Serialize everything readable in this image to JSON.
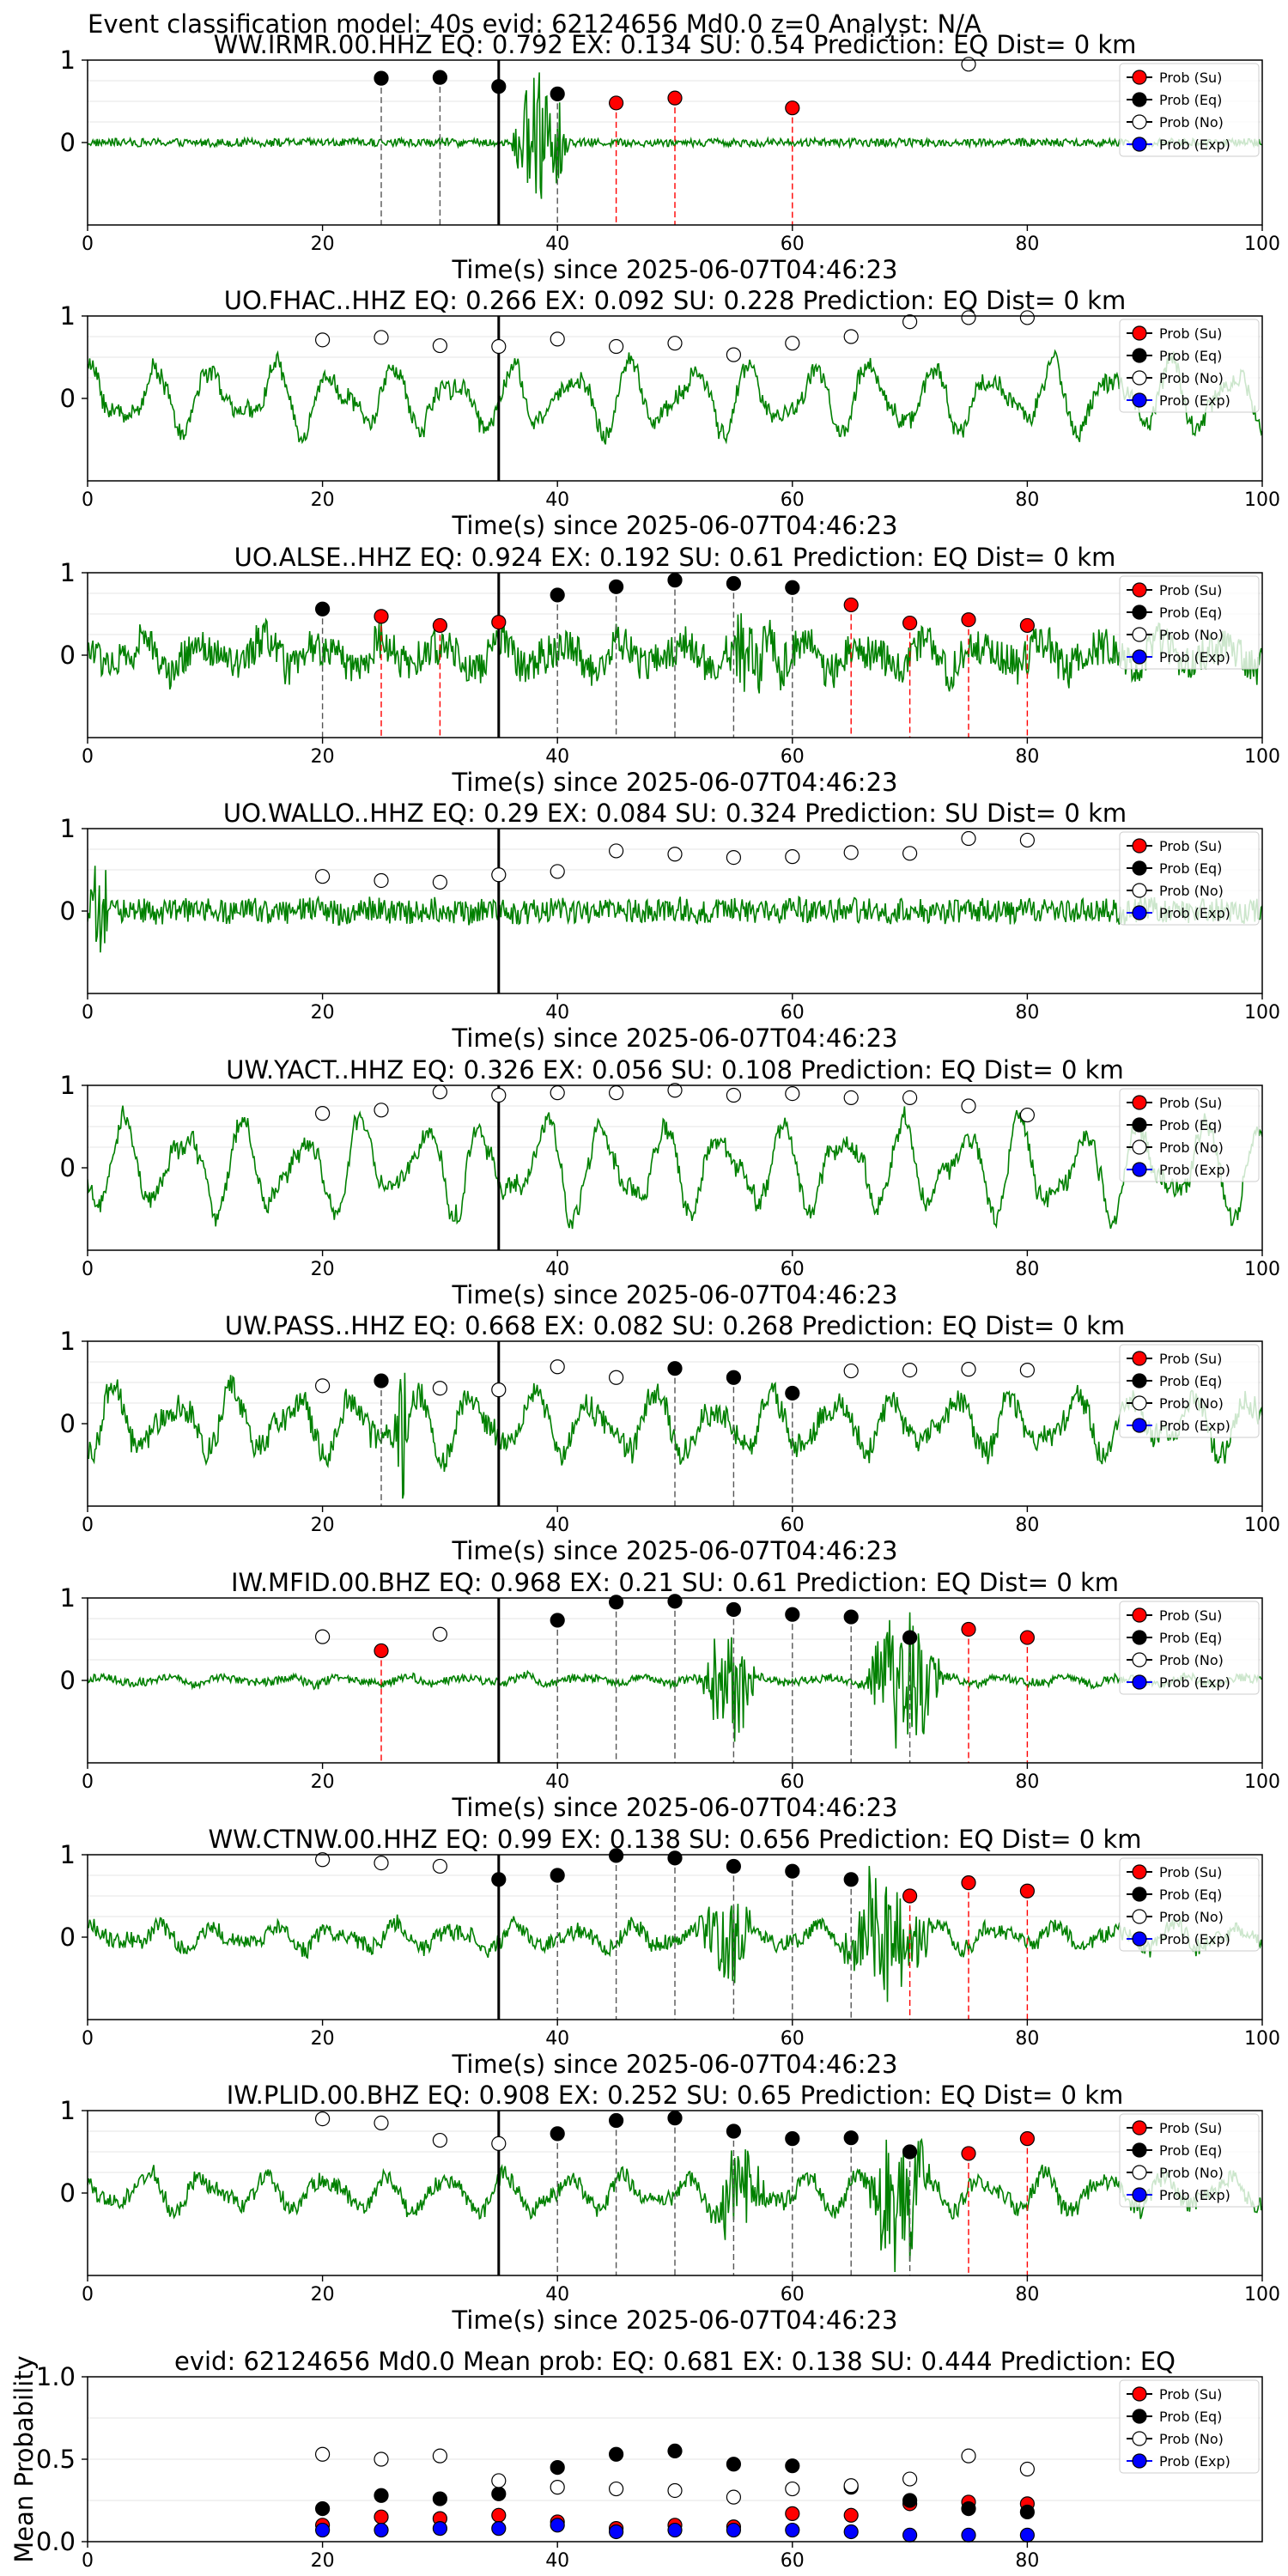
{
  "figure": {
    "title": "Event classification model: 40s evid: 62124656 Md0.0 z=0 Analyst: N/A",
    "xlabel": "Time(s) since 2025-06-07T04:46:23",
    "legend": [
      "Prob (Su)",
      "Prob (Eq)",
      "Prob (No)",
      "Prob (Exp)"
    ],
    "colors": {
      "waveform": "#008000",
      "su": "#ff0000",
      "eq": "#000000",
      "no": "#ffffff",
      "exp": "#0000ff",
      "marker_black": "#000000",
      "marker_red": "#ff0000"
    }
  },
  "chart_data": [
    {
      "type": "line",
      "title": "WW.IRMR.00.HHZ    EQ: 0.792  EX: 0.134  SU: 0.54   Prediction: EQ    Dist= 0 km",
      "xlim": [
        0,
        100
      ],
      "ylim": [
        -1,
        1
      ],
      "xticks": [
        0,
        20,
        40,
        60,
        80,
        100
      ],
      "yticks": [
        0,
        1
      ],
      "xlabel": "Time(s) since 2025-06-07T04:46:23",
      "legend_position": "top-right",
      "arrival_time": 35,
      "series": [
        {
          "name": "Prob (Su)",
          "x": [
            45,
            50,
            60
          ],
          "y": [
            0.48,
            0.54,
            0.42
          ]
        },
        {
          "name": "Prob (Eq)",
          "x": [
            25,
            30,
            35,
            40
          ],
          "y": [
            0.78,
            0.79,
            0.68,
            0.59
          ]
        },
        {
          "name": "Prob (No)",
          "x": [
            75
          ],
          "y": [
            0.95
          ]
        },
        {
          "name": "Prob (Exp)",
          "x": [],
          "y": []
        }
      ],
      "waveform": {
        "noise": 0.05,
        "osc": 0.0,
        "bursts": [
          {
            "s": 36,
            "e": 41,
            "a": 0.9
          }
        ]
      }
    },
    {
      "type": "line",
      "title": "UO.FHAC..HHZ   EQ: 0.266  EX: 0.092  SU: 0.228   Prediction: EQ    Dist= 0 km",
      "xlim": [
        0,
        100
      ],
      "ylim": [
        -1,
        1
      ],
      "xticks": [
        0,
        20,
        40,
        60,
        80,
        100
      ],
      "yticks": [
        0,
        1
      ],
      "xlabel": "Time(s) since 2025-06-07T04:46:23",
      "legend_position": "top-right",
      "arrival_time": 35,
      "series": [
        {
          "name": "Prob (Su)",
          "x": [],
          "y": []
        },
        {
          "name": "Prob (Eq)",
          "x": [],
          "y": []
        },
        {
          "name": "Prob (No)",
          "x": [
            20,
            25,
            30,
            35,
            40,
            45,
            50,
            55,
            60,
            65,
            70,
            75,
            80
          ],
          "y": [
            0.71,
            0.74,
            0.64,
            0.63,
            0.72,
            0.63,
            0.67,
            0.53,
            0.67,
            0.75,
            0.93,
            0.98,
            0.98
          ]
        },
        {
          "name": "Prob (Exp)",
          "x": [],
          "y": []
        }
      ],
      "waveform": {
        "noise": 0.1,
        "osc": 0.45,
        "bursts": []
      }
    },
    {
      "type": "line",
      "title": "UO.ALSE..HHZ   EQ: 0.924  EX: 0.192  SU: 0.61   Prediction: EQ    Dist= 0 km",
      "xlim": [
        0,
        100
      ],
      "ylim": [
        -1,
        1
      ],
      "xticks": [
        0,
        20,
        40,
        60,
        80,
        100
      ],
      "yticks": [
        0,
        1
      ],
      "xlabel": "Time(s) since 2025-06-07T04:46:23",
      "legend_position": "top-right",
      "arrival_time": 35,
      "series": [
        {
          "name": "Prob (Su)",
          "x": [
            25,
            30,
            35,
            65,
            70,
            75,
            80
          ],
          "y": [
            0.47,
            0.36,
            0.4,
            0.61,
            0.39,
            0.43,
            0.36
          ]
        },
        {
          "name": "Prob (Eq)",
          "x": [
            20,
            40,
            45,
            50,
            55,
            60
          ],
          "y": [
            0.56,
            0.73,
            0.83,
            0.91,
            0.87,
            0.82
          ]
        },
        {
          "name": "Prob (No)",
          "x": [],
          "y": []
        },
        {
          "name": "Prob (Exp)",
          "x": [],
          "y": []
        }
      ],
      "waveform": {
        "noise": 0.22,
        "osc": 0.2,
        "bursts": [
          {
            "s": 54,
            "e": 60,
            "a": 0.55
          }
        ]
      }
    },
    {
      "type": "line",
      "title": "UO.WALLO..HHZ   EQ: 0.29  EX: 0.084  SU: 0.324   Prediction: SU    Dist= 0 km",
      "xlim": [
        0,
        100
      ],
      "ylim": [
        -1,
        1
      ],
      "xticks": [
        0,
        20,
        40,
        60,
        80,
        100
      ],
      "yticks": [
        0,
        1
      ],
      "xlabel": "Time(s) since 2025-06-07T04:46:23",
      "legend_position": "top-right",
      "arrival_time": 35,
      "series": [
        {
          "name": "Prob (Su)",
          "x": [],
          "y": []
        },
        {
          "name": "Prob (Eq)",
          "x": [],
          "y": []
        },
        {
          "name": "Prob (No)",
          "x": [
            20,
            25,
            30,
            35,
            40,
            45,
            50,
            55,
            60,
            65,
            70,
            75,
            80
          ],
          "y": [
            0.42,
            0.37,
            0.35,
            0.44,
            0.48,
            0.73,
            0.69,
            0.65,
            0.66,
            0.71,
            0.7,
            0.88,
            0.86
          ]
        },
        {
          "name": "Prob (Exp)",
          "x": [],
          "y": []
        }
      ],
      "waveform": {
        "noise": 0.15,
        "osc": 0.03,
        "bursts": [
          {
            "s": 0,
            "e": 2,
            "a": 0.6
          }
        ]
      }
    },
    {
      "type": "line",
      "title": "UW.YACT..HHZ   EQ: 0.326  EX: 0.056  SU: 0.108   Prediction: EQ    Dist= 0 km",
      "xlim": [
        0,
        100
      ],
      "ylim": [
        -1,
        1
      ],
      "xticks": [
        0,
        20,
        40,
        60,
        80,
        100
      ],
      "yticks": [
        0,
        1
      ],
      "xlabel": "Time(s) since 2025-06-07T04:46:23",
      "legend_position": "top-right",
      "arrival_time": 35,
      "series": [
        {
          "name": "Prob (Su)",
          "x": [],
          "y": []
        },
        {
          "name": "Prob (Eq)",
          "x": [],
          "y": []
        },
        {
          "name": "Prob (No)",
          "x": [
            20,
            25,
            30,
            35,
            40,
            45,
            50,
            55,
            60,
            65,
            70,
            75,
            80
          ],
          "y": [
            0.66,
            0.7,
            0.92,
            0.88,
            0.91,
            0.91,
            0.94,
            0.88,
            0.9,
            0.85,
            0.85,
            0.75,
            0.64
          ]
        },
        {
          "name": "Prob (Exp)",
          "x": [],
          "y": []
        }
      ],
      "waveform": {
        "noise": 0.1,
        "osc": 0.6,
        "bursts": []
      }
    },
    {
      "type": "line",
      "title": "UW.PASS..HHZ   EQ: 0.668  EX: 0.082  SU: 0.268   Prediction: EQ    Dist= 0 km",
      "xlim": [
        0,
        100
      ],
      "ylim": [
        -1,
        1
      ],
      "xticks": [
        0,
        20,
        40,
        60,
        80,
        100
      ],
      "yticks": [
        0,
        1
      ],
      "xlabel": "Time(s) since 2025-06-07T04:46:23",
      "legend_position": "top-right",
      "arrival_time": 35,
      "series": [
        {
          "name": "Prob (Su)",
          "x": [],
          "y": []
        },
        {
          "name": "Prob (Eq)",
          "x": [
            25,
            50,
            55,
            60
          ],
          "y": [
            0.52,
            0.67,
            0.56,
            0.37
          ]
        },
        {
          "name": "Prob (No)",
          "x": [
            20,
            30,
            35,
            40,
            45,
            65,
            70,
            75,
            80
          ],
          "y": [
            0.46,
            0.43,
            0.41,
            0.69,
            0.56,
            0.64,
            0.65,
            0.66,
            0.65
          ]
        },
        {
          "name": "Prob (Exp)",
          "x": [],
          "y": []
        }
      ],
      "waveform": {
        "noise": 0.15,
        "osc": 0.4,
        "bursts": [
          {
            "s": 26,
            "e": 27.5,
            "a": 0.9
          }
        ]
      }
    },
    {
      "type": "line",
      "title": "IW.MFID.00.BHZ   EQ: 0.968  EX: 0.21  SU: 0.61   Prediction: EQ    Dist= 0 km",
      "xlim": [
        0,
        100
      ],
      "ylim": [
        -1,
        1
      ],
      "xticks": [
        0,
        20,
        40,
        60,
        80,
        100
      ],
      "yticks": [
        0,
        1
      ],
      "xlabel": "Time(s) since 2025-06-07T04:46:23",
      "legend_position": "top-right",
      "arrival_time": 35,
      "series": [
        {
          "name": "Prob (Su)",
          "x": [
            25,
            75,
            80
          ],
          "y": [
            0.36,
            0.62,
            0.52
          ]
        },
        {
          "name": "Prob (Eq)",
          "x": [
            40,
            45,
            50,
            55,
            60,
            65,
            70
          ],
          "y": [
            0.73,
            0.95,
            0.96,
            0.86,
            0.8,
            0.77,
            0.52
          ]
        },
        {
          "name": "Prob (No)",
          "x": [
            20,
            30
          ],
          "y": [
            0.53,
            0.56
          ]
        },
        {
          "name": "Prob (Exp)",
          "x": [],
          "y": []
        }
      ],
      "waveform": {
        "noise": 0.05,
        "osc": 0.05,
        "bursts": [
          {
            "s": 52,
            "e": 57,
            "a": 0.8
          },
          {
            "s": 66,
            "e": 73,
            "a": 0.9
          }
        ]
      }
    },
    {
      "type": "line",
      "title": "WW.CTNW.00.HHZ   EQ: 0.99  EX: 0.138  SU: 0.656   Prediction: EQ    Dist= 0 km",
      "xlim": [
        0,
        100
      ],
      "ylim": [
        -1,
        1
      ],
      "xticks": [
        0,
        20,
        40,
        60,
        80,
        100
      ],
      "yticks": [
        0,
        1
      ],
      "xlabel": "Time(s) since 2025-06-07T04:46:23",
      "legend_position": "top-right",
      "arrival_time": 35,
      "series": [
        {
          "name": "Prob (Su)",
          "x": [
            70,
            75,
            80
          ],
          "y": [
            0.5,
            0.66,
            0.56
          ]
        },
        {
          "name": "Prob (Eq)",
          "x": [
            35,
            40,
            45,
            50,
            55,
            60,
            65
          ],
          "y": [
            0.7,
            0.75,
            0.99,
            0.96,
            0.86,
            0.8,
            0.7
          ]
        },
        {
          "name": "Prob (No)",
          "x": [
            20,
            25,
            30
          ],
          "y": [
            0.94,
            0.9,
            0.86
          ]
        },
        {
          "name": "Prob (Exp)",
          "x": [],
          "y": []
        }
      ],
      "waveform": {
        "noise": 0.1,
        "osc": 0.15,
        "bursts": [
          {
            "s": 52,
            "e": 57,
            "a": 0.6
          },
          {
            "s": 64,
            "e": 72,
            "a": 0.8
          }
        ]
      }
    },
    {
      "type": "line",
      "title": "IW.PLID.00.BHZ   EQ: 0.908  EX: 0.252  SU: 0.65   Prediction: EQ    Dist= 0 km",
      "xlim": [
        0,
        100
      ],
      "ylim": [
        -1,
        1
      ],
      "xticks": [
        0,
        20,
        40,
        60,
        80,
        100
      ],
      "yticks": [
        0,
        1
      ],
      "xlabel": "Time(s) since 2025-06-07T04:46:23",
      "legend_position": "top-right",
      "arrival_time": 35,
      "series": [
        {
          "name": "Prob (Su)",
          "x": [
            75,
            80
          ],
          "y": [
            0.48,
            0.66
          ]
        },
        {
          "name": "Prob (Eq)",
          "x": [
            40,
            45,
            50,
            55,
            60,
            65,
            70
          ],
          "y": [
            0.72,
            0.88,
            0.91,
            0.75,
            0.66,
            0.67,
            0.5
          ]
        },
        {
          "name": "Prob (No)",
          "x": [
            20,
            25,
            30,
            35
          ],
          "y": [
            0.9,
            0.85,
            0.64,
            0.6
          ]
        },
        {
          "name": "Prob (Exp)",
          "x": [],
          "y": []
        }
      ],
      "waveform": {
        "noise": 0.1,
        "osc": 0.25,
        "bursts": [
          {
            "s": 53,
            "e": 58,
            "a": 0.5
          },
          {
            "s": 66,
            "e": 72,
            "a": 0.9
          }
        ]
      }
    },
    {
      "type": "scatter",
      "title": "evid: 62124656  Md0.0    Mean prob:    EQ: 0.681  EX: 0.138  SU: 0.444   Prediction: EQ",
      "ylabel": "Mean Probability",
      "xlim": [
        0,
        100
      ],
      "ylim": [
        0,
        1
      ],
      "xticks": [
        0,
        20,
        40,
        60,
        80
      ],
      "yticks": [
        0.0,
        0.5,
        1.0
      ],
      "ytick_labels": [
        "0.0",
        "0.5",
        "1.0"
      ],
      "legend_position": "top-right",
      "x": [
        20,
        25,
        30,
        35,
        40,
        45,
        50,
        55,
        60,
        65,
        70,
        75,
        80
      ],
      "series": [
        {
          "name": "Prob (Su)",
          "values": [
            0.1,
            0.15,
            0.14,
            0.16,
            0.12,
            0.08,
            0.1,
            0.09,
            0.17,
            0.16,
            0.23,
            0.24,
            0.23
          ]
        },
        {
          "name": "Prob (Eq)",
          "values": [
            0.2,
            0.28,
            0.26,
            0.29,
            0.45,
            0.53,
            0.55,
            0.47,
            0.46,
            0.33,
            0.25,
            0.2,
            0.18
          ]
        },
        {
          "name": "Prob (No)",
          "values": [
            0.53,
            0.5,
            0.52,
            0.37,
            0.33,
            0.32,
            0.31,
            0.27,
            0.32,
            0.34,
            0.38,
            0.52,
            0.44
          ]
        },
        {
          "name": "Prob (Exp)",
          "values": [
            0.07,
            0.07,
            0.08,
            0.08,
            0.1,
            0.06,
            0.07,
            0.07,
            0.07,
            0.06,
            0.04,
            0.04,
            0.04
          ]
        }
      ]
    }
  ]
}
